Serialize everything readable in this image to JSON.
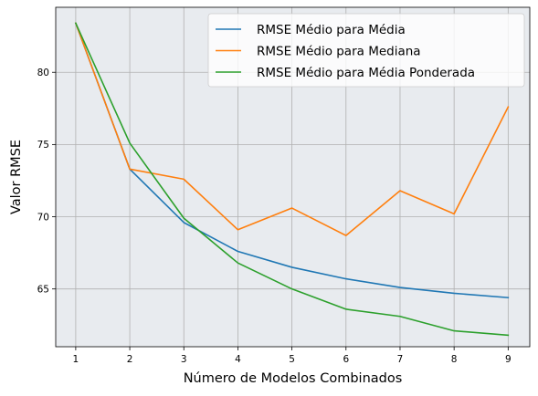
{
  "chart_data": {
    "type": "line",
    "xlabel": "Número de Modelos Combinados",
    "ylabel": "Valor RMSE",
    "x": [
      1,
      2,
      3,
      4,
      5,
      6,
      7,
      8,
      9
    ],
    "xlim": [
      0.63,
      9.4
    ],
    "ylim": [
      61.0,
      84.5
    ],
    "xticks": [
      "1",
      "2",
      "3",
      "4",
      "5",
      "6",
      "7",
      "8",
      "9"
    ],
    "yticks": [
      65,
      70,
      75,
      80
    ],
    "grid": true,
    "legend_position": "top-right",
    "series": [
      {
        "name": "RMSE Médio para Média",
        "color": "#1f77b4",
        "values": [
          83.4,
          73.3,
          69.6,
          67.6,
          66.5,
          65.7,
          65.1,
          64.7,
          64.4
        ]
      },
      {
        "name": "RMSE Médio para Mediana",
        "color": "#ff7f0e",
        "values": [
          83.4,
          73.3,
          72.6,
          69.1,
          70.6,
          68.7,
          71.8,
          70.2,
          77.6
        ]
      },
      {
        "name": "RMSE Médio para Média Ponderada",
        "color": "#2ca02c",
        "values": [
          83.4,
          75.1,
          69.9,
          66.8,
          65.0,
          63.6,
          63.1,
          62.1,
          61.8
        ]
      }
    ],
    "plot_background": "#e8ebef",
    "grid_color": "#b0b0b0"
  }
}
